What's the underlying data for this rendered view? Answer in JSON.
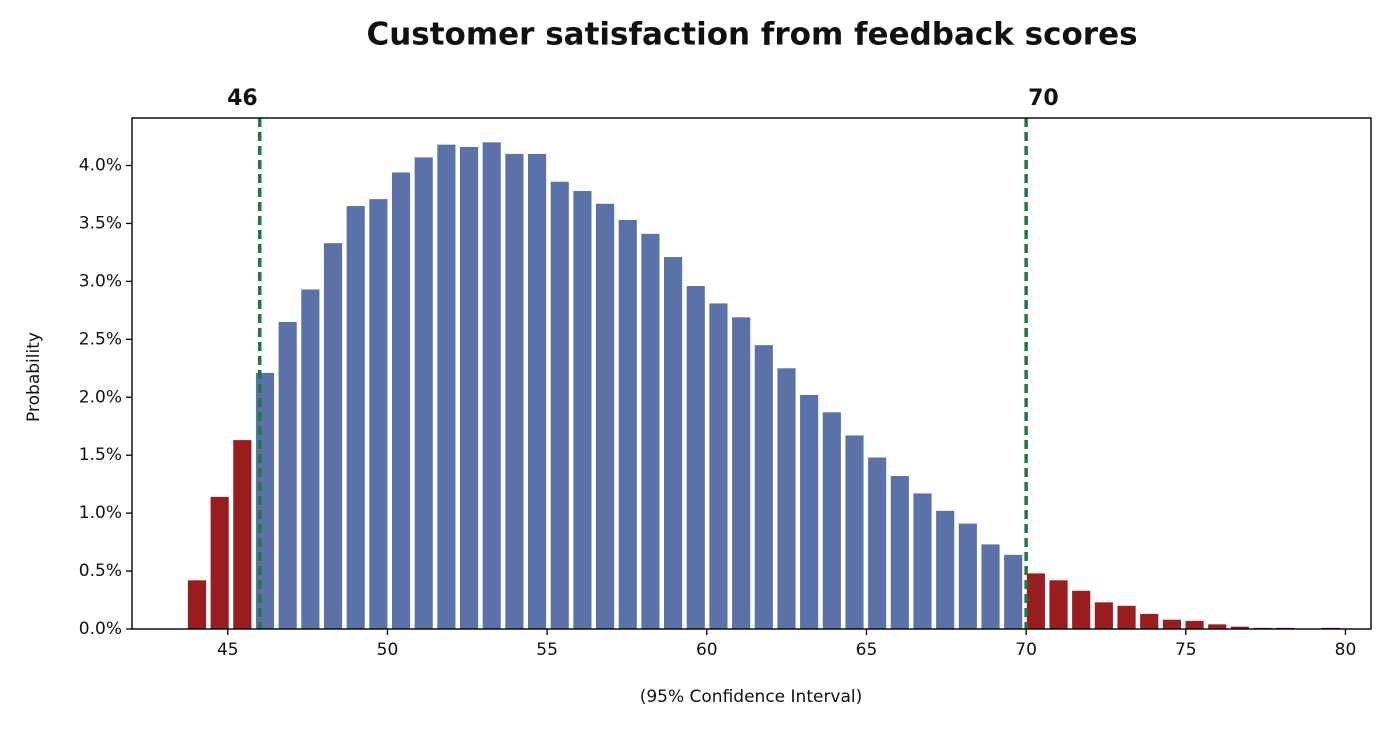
{
  "chart_data": {
    "type": "histogram",
    "title": "Customer satisfaction from feedback scores",
    "xlabel": "(95% Confidence Interval)",
    "ylabel": "Probability",
    "bins": [
      43.68,
      44.39,
      45.1,
      45.81,
      46.52,
      47.23,
      47.94,
      48.65,
      49.36,
      50.07,
      50.78,
      51.49,
      52.2,
      52.91,
      53.62,
      54.33,
      55.04,
      55.75,
      56.46,
      57.17,
      57.88,
      58.59,
      59.3,
      60.01,
      60.72,
      61.43,
      62.14,
      62.85,
      63.56,
      64.27,
      64.98,
      65.69,
      66.4,
      67.11,
      67.82,
      68.53,
      69.24,
      69.95,
      70.66,
      71.37,
      72.08,
      72.79,
      73.5,
      74.21,
      74.92,
      75.63,
      76.34,
      77.05,
      77.76,
      78.47,
      79.18,
      79.89
    ],
    "values": [
      0.42,
      1.14,
      1.63,
      2.21,
      2.65,
      2.93,
      3.33,
      3.65,
      3.71,
      3.94,
      4.07,
      4.18,
      4.16,
      4.2,
      4.1,
      4.1,
      3.86,
      3.78,
      3.67,
      3.53,
      3.41,
      3.21,
      2.96,
      2.81,
      2.69,
      2.45,
      2.25,
      2.02,
      1.87,
      1.67,
      1.48,
      1.32,
      1.17,
      1.02,
      0.91,
      0.73,
      0.64,
      0.48,
      0.42,
      0.33,
      0.23,
      0.2,
      0.13,
      0.08,
      0.07,
      0.04,
      0.02,
      0.01,
      0.01,
      0,
      0.01
    ],
    "color": "#5b72a8",
    "outside_color": "#991c1e",
    "interval": [
      46,
      70
    ],
    "interval_color": "#1b7a3e",
    "xlim": [
      42,
      80.8
    ],
    "xticks": [
      45,
      50,
      55,
      60,
      65,
      70,
      75,
      80
    ],
    "ylim": [
      0,
      4.41
    ],
    "yticks": [
      {
        "value": 0,
        "label": "0.0%"
      },
      {
        "value": 0.5,
        "label": "0.5%"
      },
      {
        "value": 1,
        "label": "1.0%"
      },
      {
        "value": 1.5,
        "label": "1.5%"
      },
      {
        "value": 2,
        "label": "2.0%"
      },
      {
        "value": 2.5,
        "label": "2.5%"
      },
      {
        "value": 3,
        "label": "3.0%"
      },
      {
        "value": 3.5,
        "label": "3.5%"
      },
      {
        "value": 4,
        "label": "4.0%"
      }
    ],
    "grid": false
  }
}
